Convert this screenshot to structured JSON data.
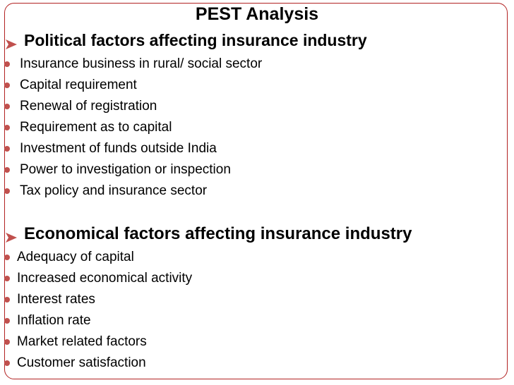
{
  "title": "PEST Analysis",
  "accent_color": "#c0504d",
  "border_color": "#b22222",
  "sections": [
    {
      "heading": "Political factors affecting insurance industry",
      "heading_icon": "arrow-bullet-icon",
      "items": [
        "Insurance business in rural/ social sector",
        "Capital requirement",
        "Renewal of registration",
        "Requirement as to capital",
        "Investment of funds outside India",
        "Power to investigation or inspection",
        "Tax policy and insurance sector"
      ]
    },
    {
      "heading": "Economical factors affecting insurance industry",
      "heading_icon": "arrow-bullet-icon",
      "items": [
        "Adequacy of capital",
        "Increased economical activity",
        "Interest rates",
        "Inflation rate",
        "Market related factors",
        "Customer satisfaction"
      ]
    }
  ]
}
